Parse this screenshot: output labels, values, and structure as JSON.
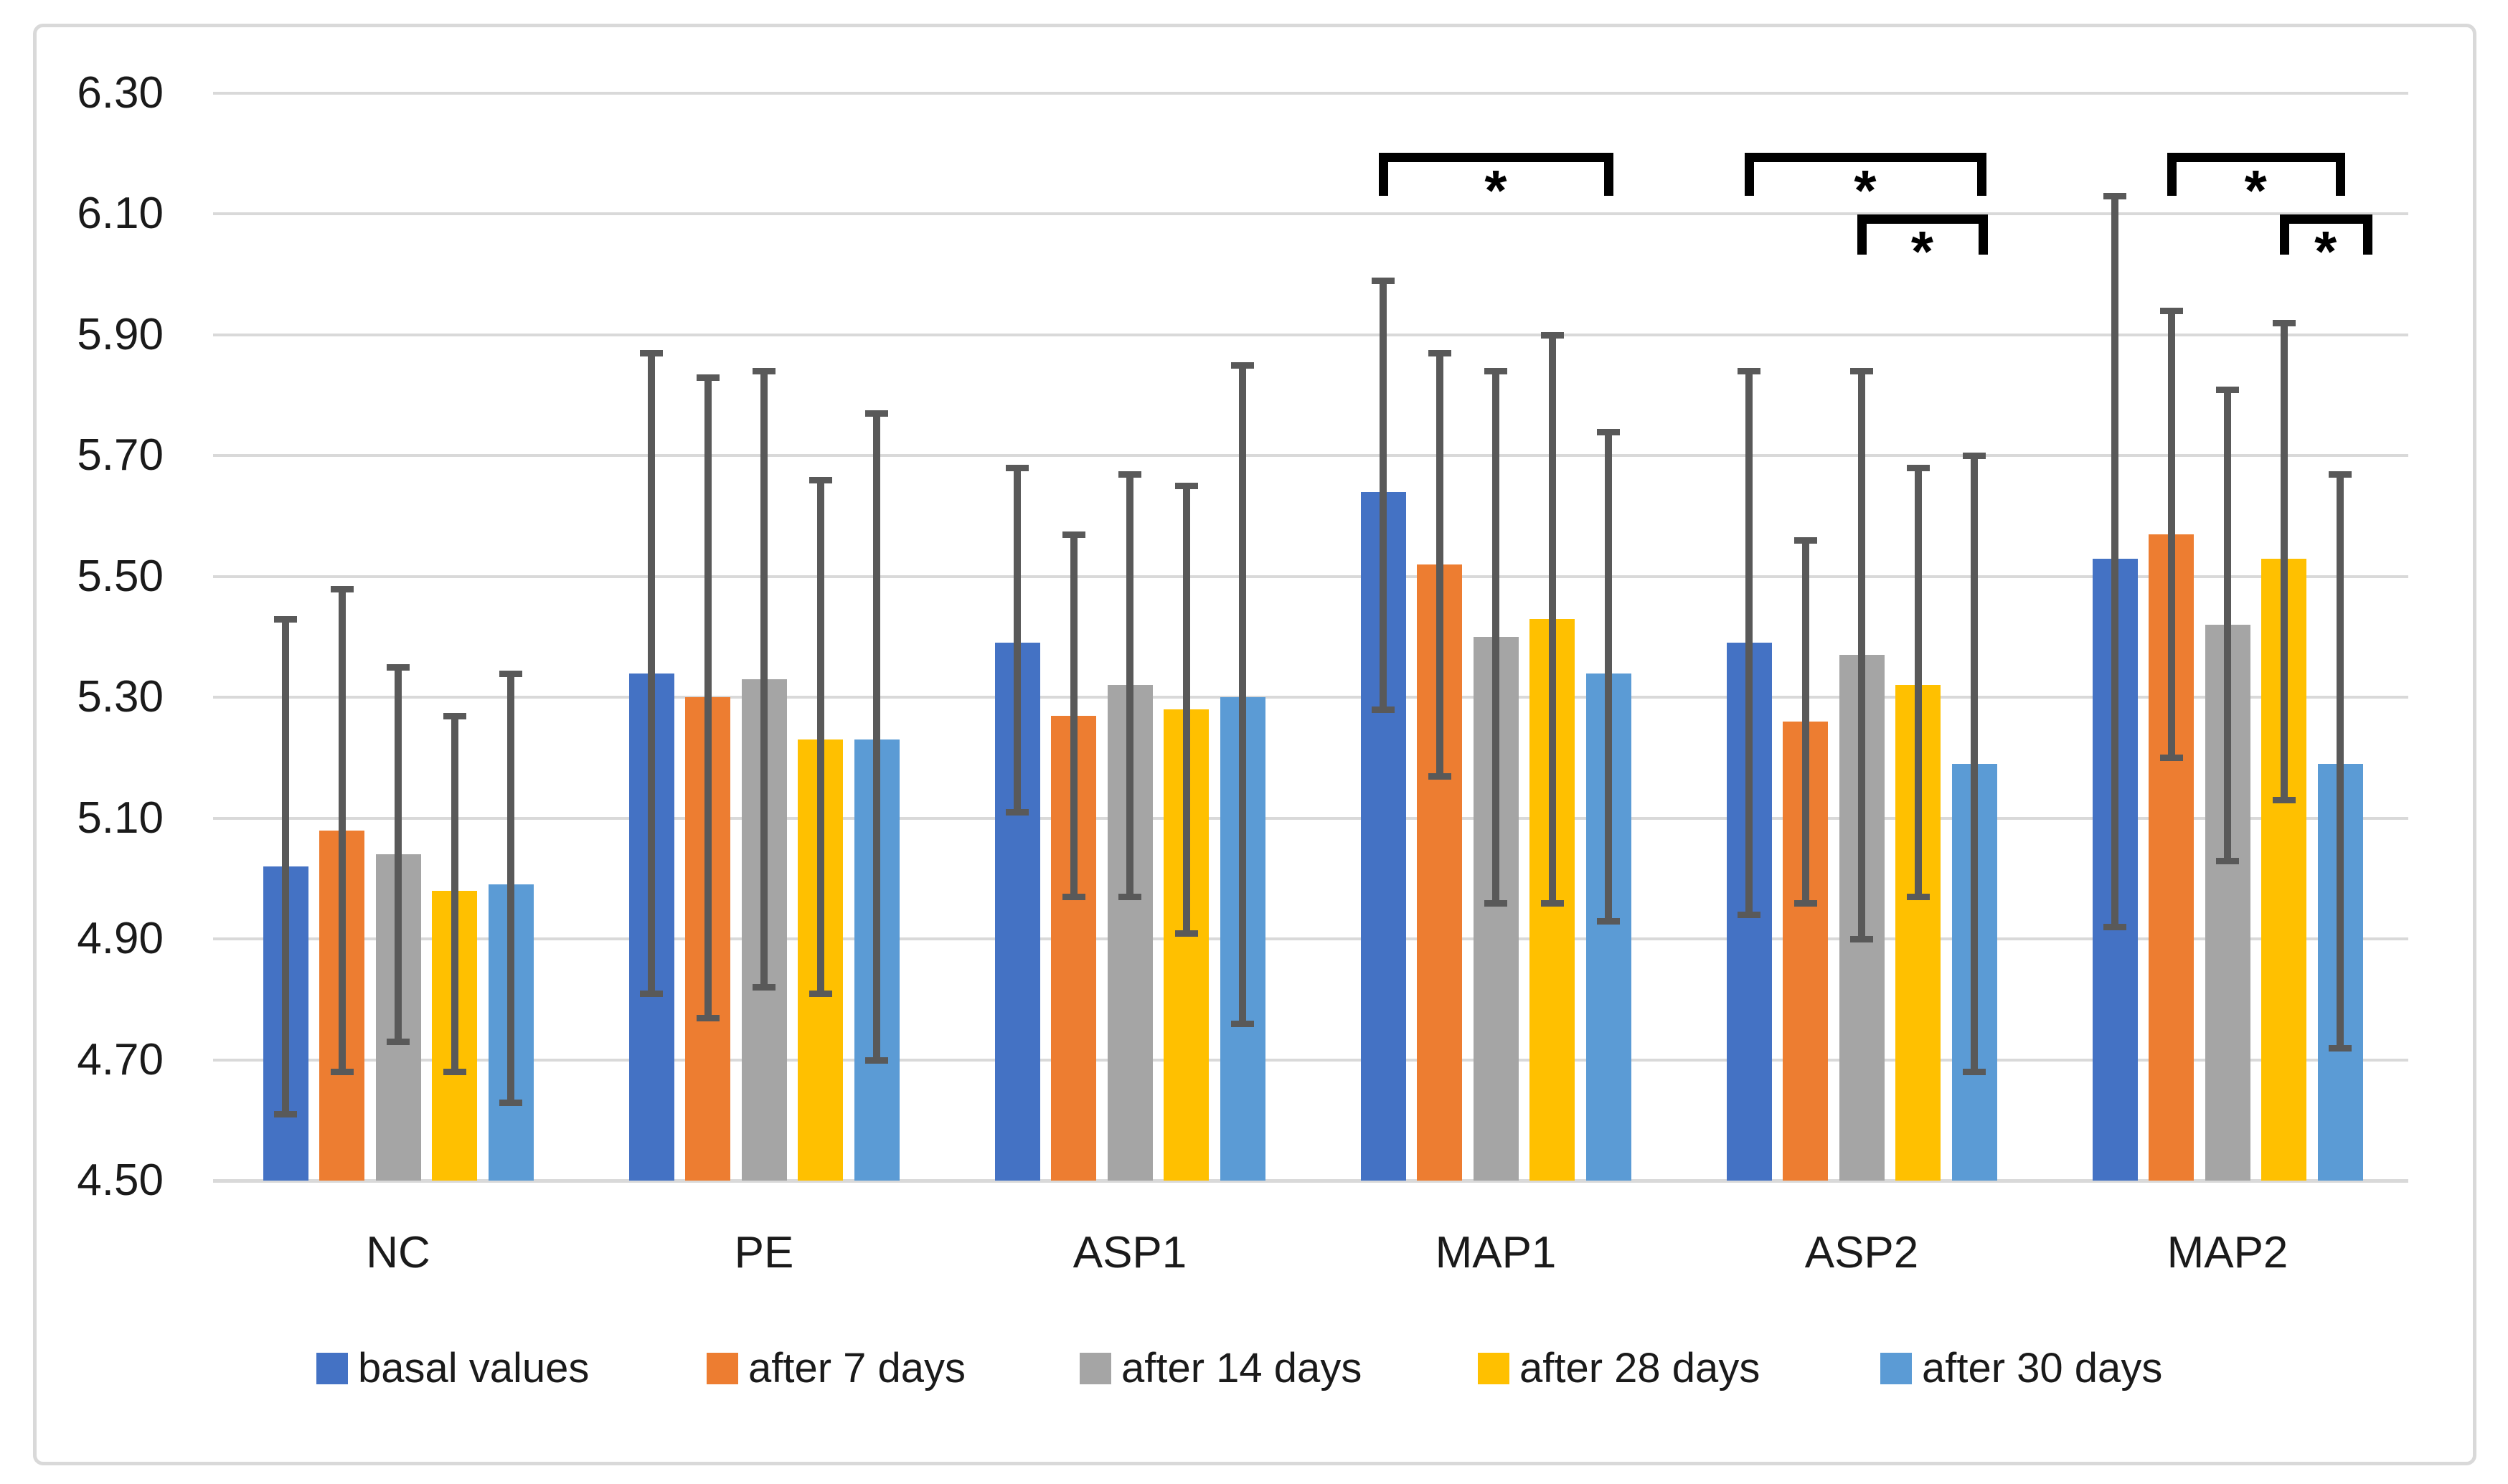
{
  "chart_data": {
    "type": "bar",
    "title": "",
    "xlabel": "",
    "ylabel": "",
    "categories": [
      "NC",
      "PE",
      "ASP1",
      "MAP1",
      "ASP2",
      "MAP2"
    ],
    "series": [
      {
        "name": "basal values",
        "color": "#4472C4",
        "values": [
          5.02,
          5.34,
          5.39,
          5.64,
          5.39,
          5.53
        ],
        "error_low": [
          4.61,
          4.81,
          5.11,
          5.28,
          4.94,
          4.92
        ],
        "error_high": [
          5.43,
          5.87,
          5.68,
          5.99,
          5.84,
          6.13
        ]
      },
      {
        "name": "after 7 days",
        "color": "#ED7D31",
        "values": [
          5.08,
          5.3,
          5.27,
          5.52,
          5.26,
          5.57
        ],
        "error_low": [
          4.68,
          4.77,
          4.97,
          5.17,
          4.96,
          5.2
        ],
        "error_high": [
          5.48,
          5.83,
          5.57,
          5.87,
          5.56,
          5.94
        ]
      },
      {
        "name": "after 14 days",
        "color": "#A5A5A5",
        "values": [
          5.04,
          5.33,
          5.32,
          5.4,
          5.37,
          5.42
        ],
        "error_low": [
          4.73,
          4.82,
          4.97,
          4.96,
          4.9,
          5.03
        ],
        "error_high": [
          5.35,
          5.84,
          5.67,
          5.84,
          5.84,
          5.81
        ]
      },
      {
        "name": "after 28 days",
        "color": "#FFC000",
        "values": [
          4.98,
          5.23,
          5.28,
          5.43,
          5.32,
          5.53
        ],
        "error_low": [
          4.68,
          4.81,
          4.91,
          4.96,
          4.97,
          5.13
        ],
        "error_high": [
          5.27,
          5.66,
          5.65,
          5.9,
          5.68,
          5.92
        ]
      },
      {
        "name": "after 30 days",
        "color": "#5B9BD5",
        "values": [
          4.99,
          5.23,
          5.3,
          5.34,
          5.19,
          5.19
        ],
        "error_low": [
          4.63,
          4.7,
          4.76,
          4.93,
          4.68,
          4.72
        ],
        "error_high": [
          5.34,
          5.77,
          5.85,
          5.74,
          5.7,
          5.67
        ]
      }
    ],
    "y_axis": {
      "min": 4.5,
      "max": 6.3,
      "step": 0.2,
      "tick_labels": [
        "4.50",
        "4.70",
        "4.90",
        "5.10",
        "5.30",
        "5.50",
        "5.70",
        "5.90",
        "6.10",
        "6.30"
      ]
    },
    "grid": true,
    "gridline_color": "#D9D9D9",
    "error_bar_color": "#595959",
    "significance_brackets": [
      {
        "category": "MAP1",
        "from_series": "basal values",
        "to_series": "after 30 days",
        "label": "*",
        "level": 1
      },
      {
        "category": "ASP2",
        "from_series": "basal values",
        "to_series": "after 30 days",
        "label": "*",
        "level": 1
      },
      {
        "category": "ASP2",
        "from_series": "after 14 days",
        "to_series": "after 30 days",
        "label": "*",
        "level": 2
      },
      {
        "category": "MAP2",
        "from_series": "after 7 days",
        "to_series": "after 30 days",
        "label": "*",
        "level": 1
      },
      {
        "category": "MAP2",
        "from_series": "after 28 days",
        "to_series": "after 30 days",
        "label": "*",
        "level": 2
      }
    ],
    "legend": {
      "position": "bottom",
      "entries": [
        "basal values",
        "after 7 days",
        "after 14 days",
        "after 28 days",
        "after 30 days"
      ]
    }
  }
}
